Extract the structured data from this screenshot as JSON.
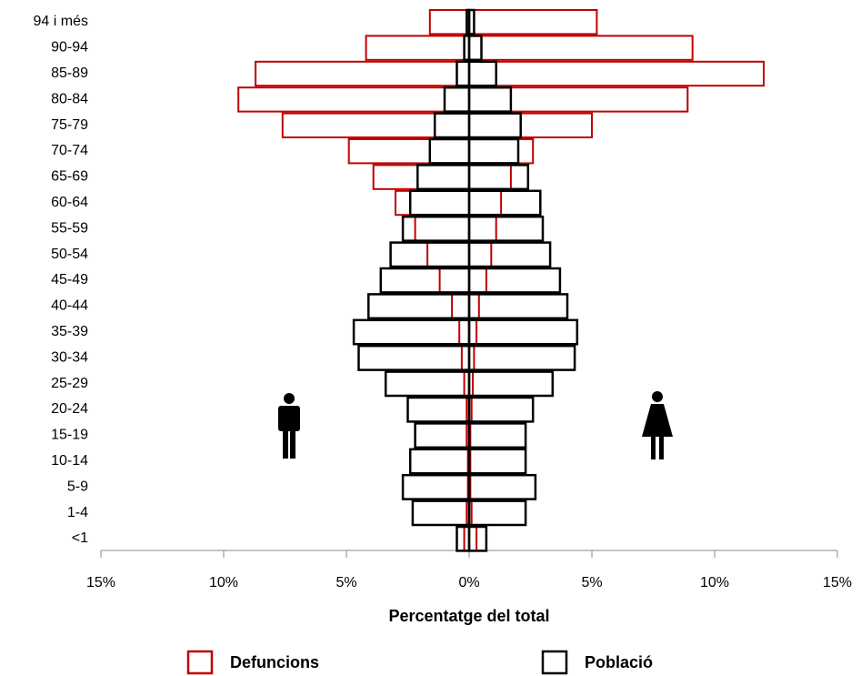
{
  "chart_data": {
    "type": "pyramid",
    "categories": [
      "94 i més",
      "90-94",
      "85-89",
      "80-84",
      "75-79",
      "70-74",
      "65-69",
      "60-64",
      "55-59",
      "50-54",
      "45-49",
      "40-44",
      "35-39",
      "30-34",
      "25-29",
      "20-24",
      "15-19",
      "10-14",
      "5-9",
      "1-4",
      "<1"
    ],
    "series": [
      {
        "name": "Defuncions",
        "color": "#c00000",
        "values_left": [
          -1.6,
          -4.2,
          -8.7,
          -9.4,
          -7.6,
          -4.9,
          -3.9,
          -3.0,
          -2.2,
          -1.7,
          -1.2,
          -0.7,
          -0.4,
          -0.3,
          -0.2,
          -0.1,
          -0.1,
          -0.05,
          -0.05,
          -0.1,
          -0.2
        ],
        "values_right": [
          5.2,
          9.1,
          12.0,
          8.9,
          5.0,
          2.6,
          1.7,
          1.3,
          1.1,
          0.9,
          0.7,
          0.4,
          0.3,
          0.2,
          0.15,
          0.1,
          0.05,
          0.05,
          0.05,
          0.1,
          0.3
        ]
      },
      {
        "name": "Població",
        "color": "#000000",
        "values_left": [
          -0.1,
          -0.2,
          -0.5,
          -1.0,
          -1.4,
          -1.6,
          -2.1,
          -2.4,
          -2.7,
          -3.2,
          -3.6,
          -4.1,
          -4.7,
          -4.5,
          -3.4,
          -2.5,
          -2.2,
          -2.4,
          -2.7,
          -2.3,
          -0.5
        ],
        "values_right": [
          0.2,
          0.5,
          1.1,
          1.7,
          2.1,
          2.0,
          2.4,
          2.9,
          3.0,
          3.3,
          3.7,
          4.0,
          4.4,
          4.3,
          3.4,
          2.6,
          2.3,
          2.3,
          2.7,
          2.3,
          0.7
        ]
      }
    ],
    "xlabel": "Percentatge del total",
    "xlim": [
      -15,
      15
    ],
    "xticks": [
      {
        "value": -15,
        "label": "15%"
      },
      {
        "value": -10,
        "label": "10%"
      },
      {
        "value": -5,
        "label": "5%"
      },
      {
        "value": 0,
        "label": "0%"
      },
      {
        "value": 5,
        "label": "5%"
      },
      {
        "value": 10,
        "label": "10%"
      },
      {
        "value": 15,
        "label": "15%"
      }
    ]
  }
}
